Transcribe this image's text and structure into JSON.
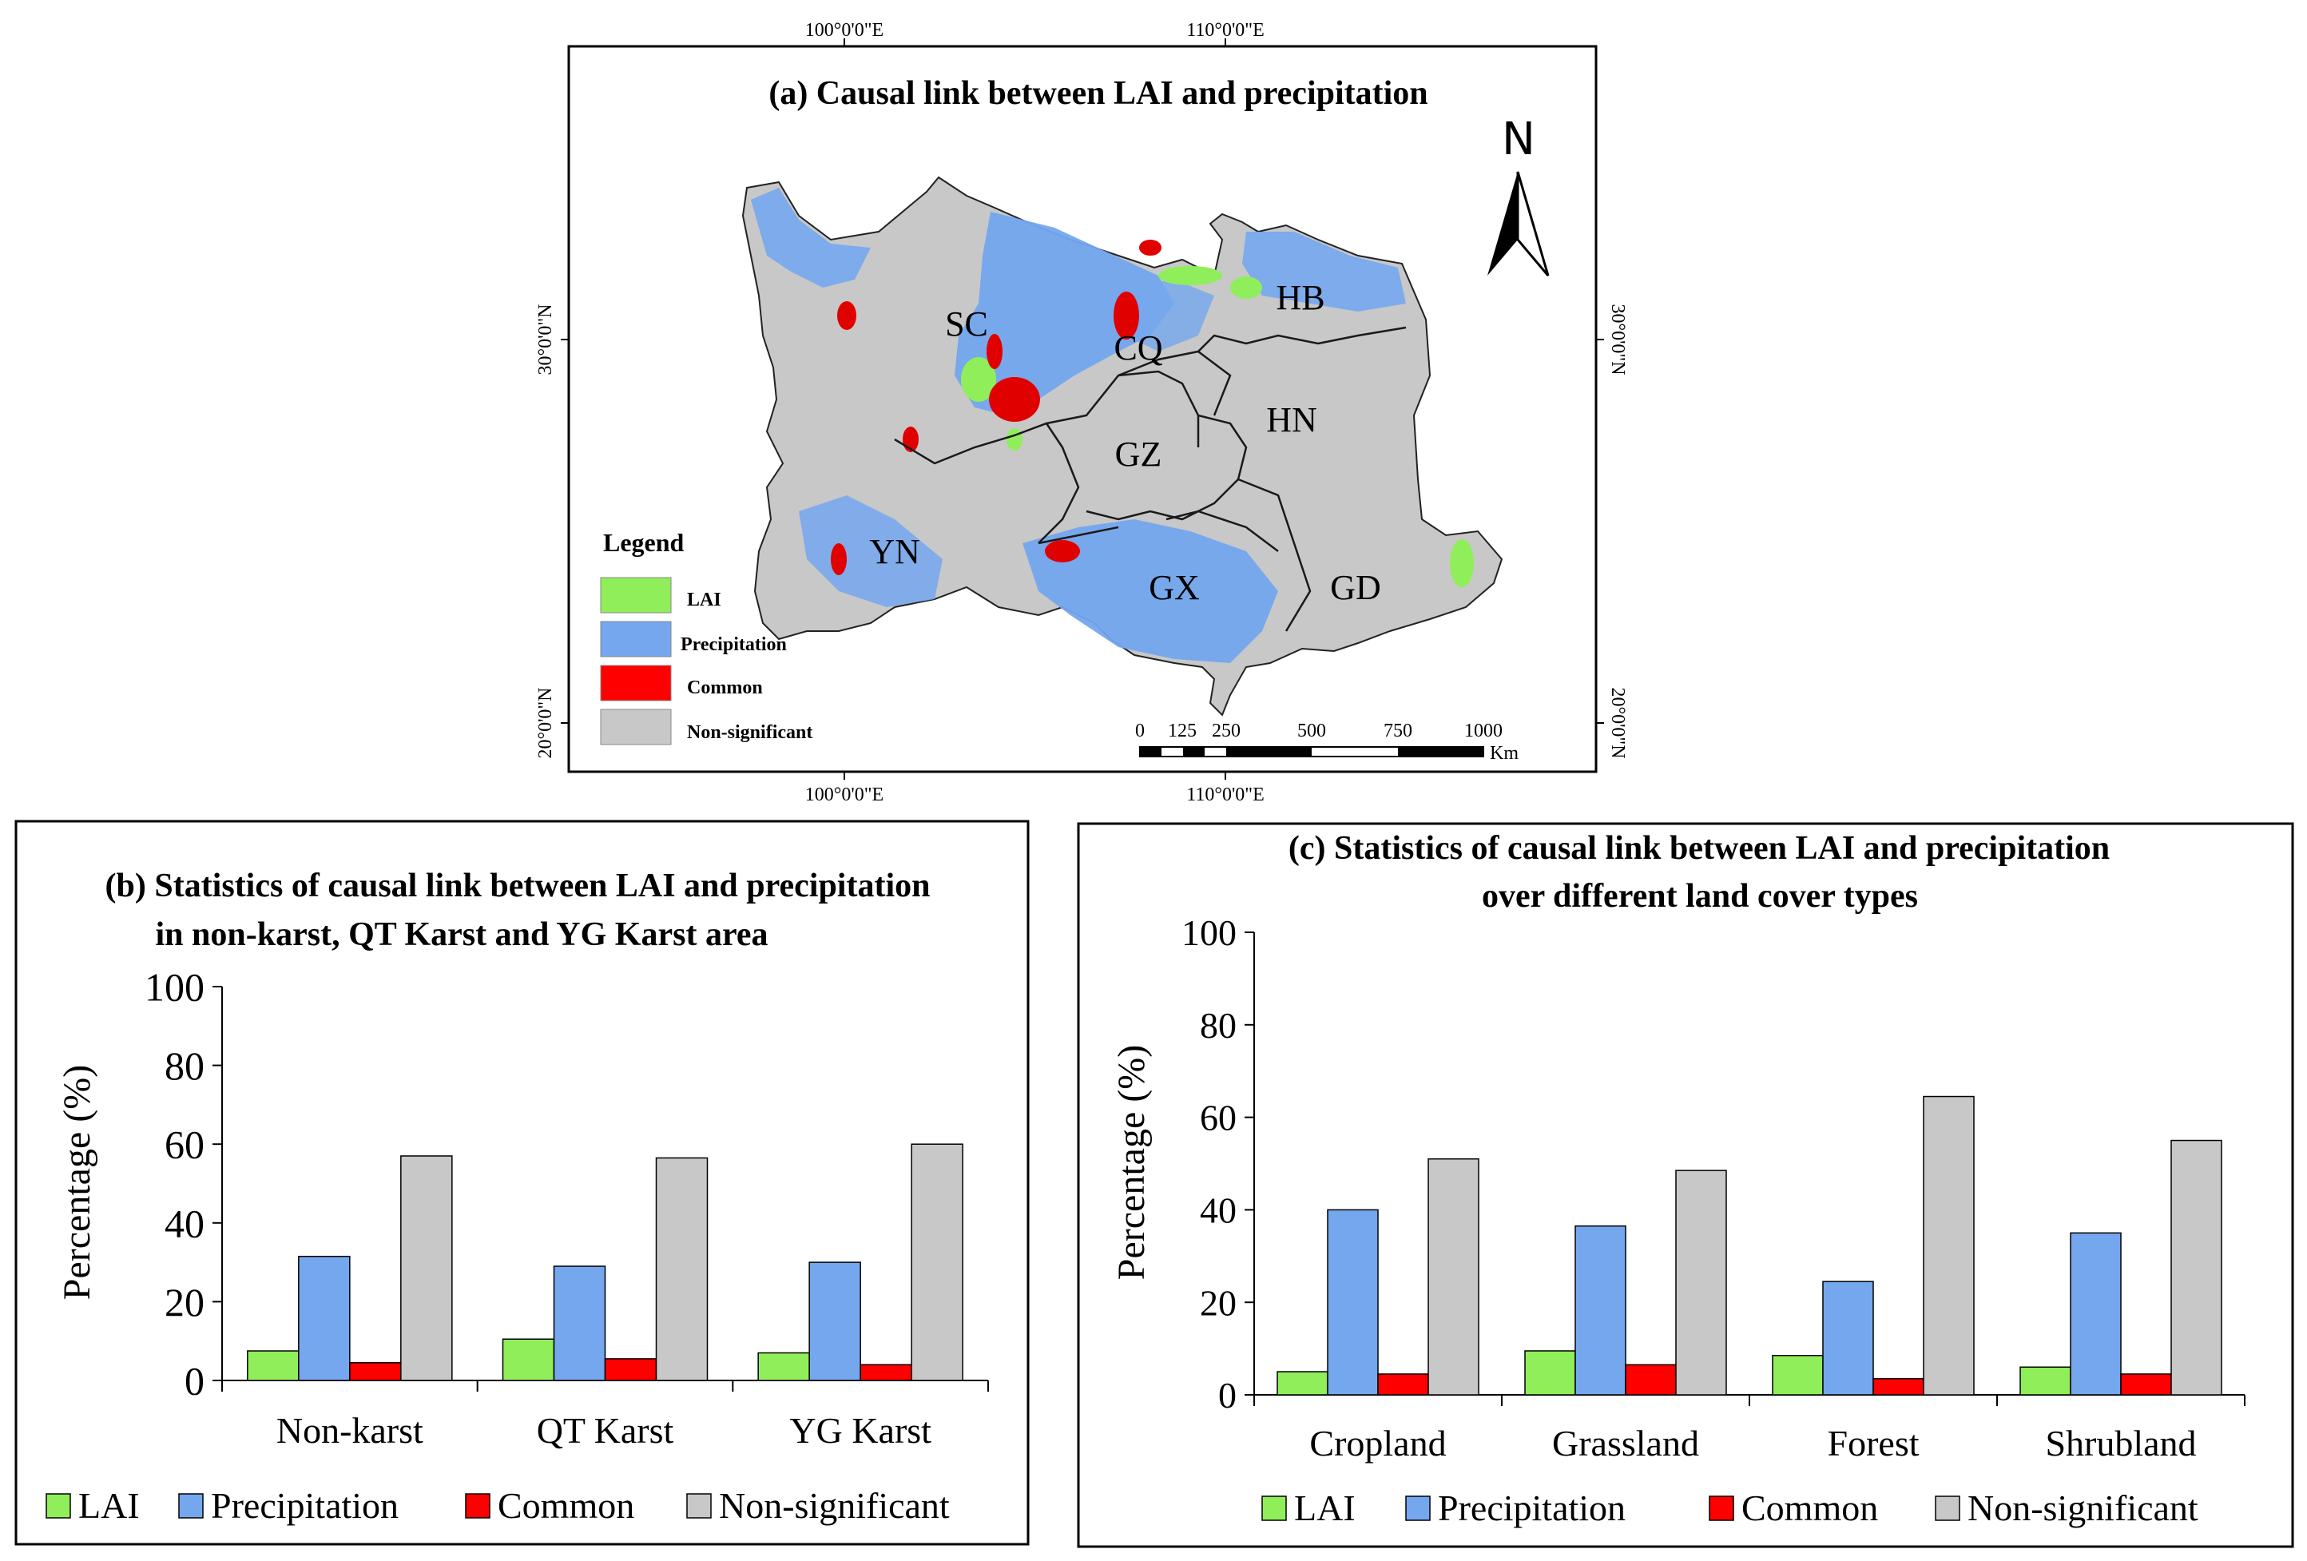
{
  "map": {
    "title": "(a) Causal link between LAI and precipitation",
    "lon_labels": [
      "100°0'0\"E",
      "110°0'0\"E"
    ],
    "lat_labels": [
      "30°0'0\"N",
      "20°0'0\"N"
    ],
    "north_label": "N",
    "provinces": [
      "SC",
      "CQ",
      "HB",
      "HN",
      "GZ",
      "YN",
      "GX",
      "GD"
    ],
    "legend_title": "Legend",
    "legend": [
      {
        "label": "LAI",
        "color": "#90ee5a"
      },
      {
        "label": "Precipitation",
        "color": "#74a7ee"
      },
      {
        "label": "Common",
        "color": "#ff0000"
      },
      {
        "label": "Non-significant",
        "color": "#c8c8c8"
      }
    ],
    "scale_ticks": [
      "0",
      "125",
      "250",
      "500",
      "750",
      "1000"
    ],
    "scale_unit": "Km"
  },
  "chart_data": [
    {
      "type": "bar",
      "title": "(b) Statistics of causal link between LAI and precipitation",
      "subtitle": "in non-karst, QT Karst and YG Karst area",
      "ylabel": "Percentage (%)",
      "xlabel": "",
      "ylim": [
        0,
        100
      ],
      "yticks": [
        "0",
        "20",
        "40",
        "60",
        "80",
        "100"
      ],
      "categories": [
        "Non-karst",
        "QT Karst",
        "YG Karst"
      ],
      "series": [
        {
          "name": "LAI",
          "color": "#90ee5a",
          "values": [
            7.5,
            10.5,
            7
          ]
        },
        {
          "name": "Precipitation",
          "color": "#74a7ee",
          "values": [
            31.5,
            29,
            30
          ]
        },
        {
          "name": "Common",
          "color": "#ff0000",
          "values": [
            4.5,
            5.5,
            4
          ]
        },
        {
          "name": "Non-significant",
          "color": "#c8c8c8",
          "values": [
            57,
            56.5,
            60
          ]
        }
      ]
    },
    {
      "type": "bar",
      "title": "(c)  Statistics of causal link between LAI and precipitation",
      "subtitle": "over different land cover types",
      "ylabel": "Percentage (%)",
      "xlabel": "",
      "ylim": [
        0,
        100
      ],
      "yticks": [
        "0",
        "20",
        "40",
        "60",
        "80",
        "100"
      ],
      "categories": [
        "Cropland",
        "Grassland",
        "Forest",
        "Shrubland"
      ],
      "series": [
        {
          "name": "LAI",
          "color": "#90ee5a",
          "values": [
            5,
            9.5,
            8.5,
            6
          ]
        },
        {
          "name": "Precipitation",
          "color": "#74a7ee",
          "values": [
            40,
            36.5,
            24.5,
            35
          ]
        },
        {
          "name": "Common",
          "color": "#ff0000",
          "values": [
            4.5,
            6.5,
            3.5,
            4.5
          ]
        },
        {
          "name": "Non-significant",
          "color": "#c8c8c8",
          "values": [
            51,
            48.5,
            64.5,
            55
          ]
        }
      ]
    }
  ]
}
